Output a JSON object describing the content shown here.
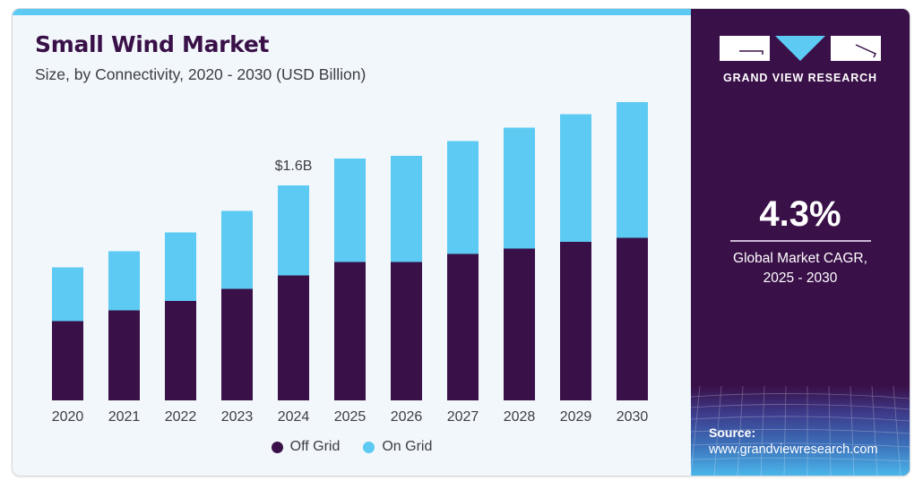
{
  "header": {
    "title": "Small Wind Market",
    "subtitle": "Size, by Connectivity, 2020 - 2030 (USD Billion)"
  },
  "colors": {
    "off_grid": "#3a1048",
    "on_grid": "#5ccaf3",
    "accent_bar": "#5ccaf3",
    "side_panel": "#3a1048"
  },
  "brand": {
    "name": "GRAND VIEW RESEARCH",
    "logo_icon": "gvr-logo-icon"
  },
  "highlight": {
    "cagr_value": "4.3%",
    "cagr_label_line1": "Global Market CAGR,",
    "cagr_label_line2": "2025 - 2030"
  },
  "source": {
    "label": "Source:",
    "url": "www.grandviewresearch.com"
  },
  "chart_data": {
    "type": "bar",
    "stacked": true,
    "title": "Small Wind Market",
    "subtitle": "Size, by Connectivity, 2020 - 2030 (USD Billion)",
    "xlabel": "",
    "ylabel": "USD Billion",
    "categories": [
      "2020",
      "2021",
      "2022",
      "2023",
      "2024",
      "2025",
      "2026",
      "2027",
      "2028",
      "2029",
      "2030"
    ],
    "series": [
      {
        "name": "Off Grid",
        "color": "#3a1048",
        "values": [
          0.59,
          0.67,
          0.74,
          0.83,
          0.93,
          1.03,
          1.03,
          1.09,
          1.13,
          1.18,
          1.21
        ]
      },
      {
        "name": "On Grid",
        "color": "#5ccaf3",
        "values": [
          0.4,
          0.44,
          0.51,
          0.58,
          0.67,
          0.77,
          0.79,
          0.84,
          0.9,
          0.95,
          1.01
        ]
      }
    ],
    "annotations": [
      {
        "category": "2024",
        "text": "$1.6B"
      }
    ],
    "ylim": [
      0,
      2.4
    ],
    "grid": false,
    "y_axis_visible": false,
    "legend": {
      "position": "bottom-center",
      "entries": [
        "Off Grid",
        "On Grid"
      ]
    }
  }
}
